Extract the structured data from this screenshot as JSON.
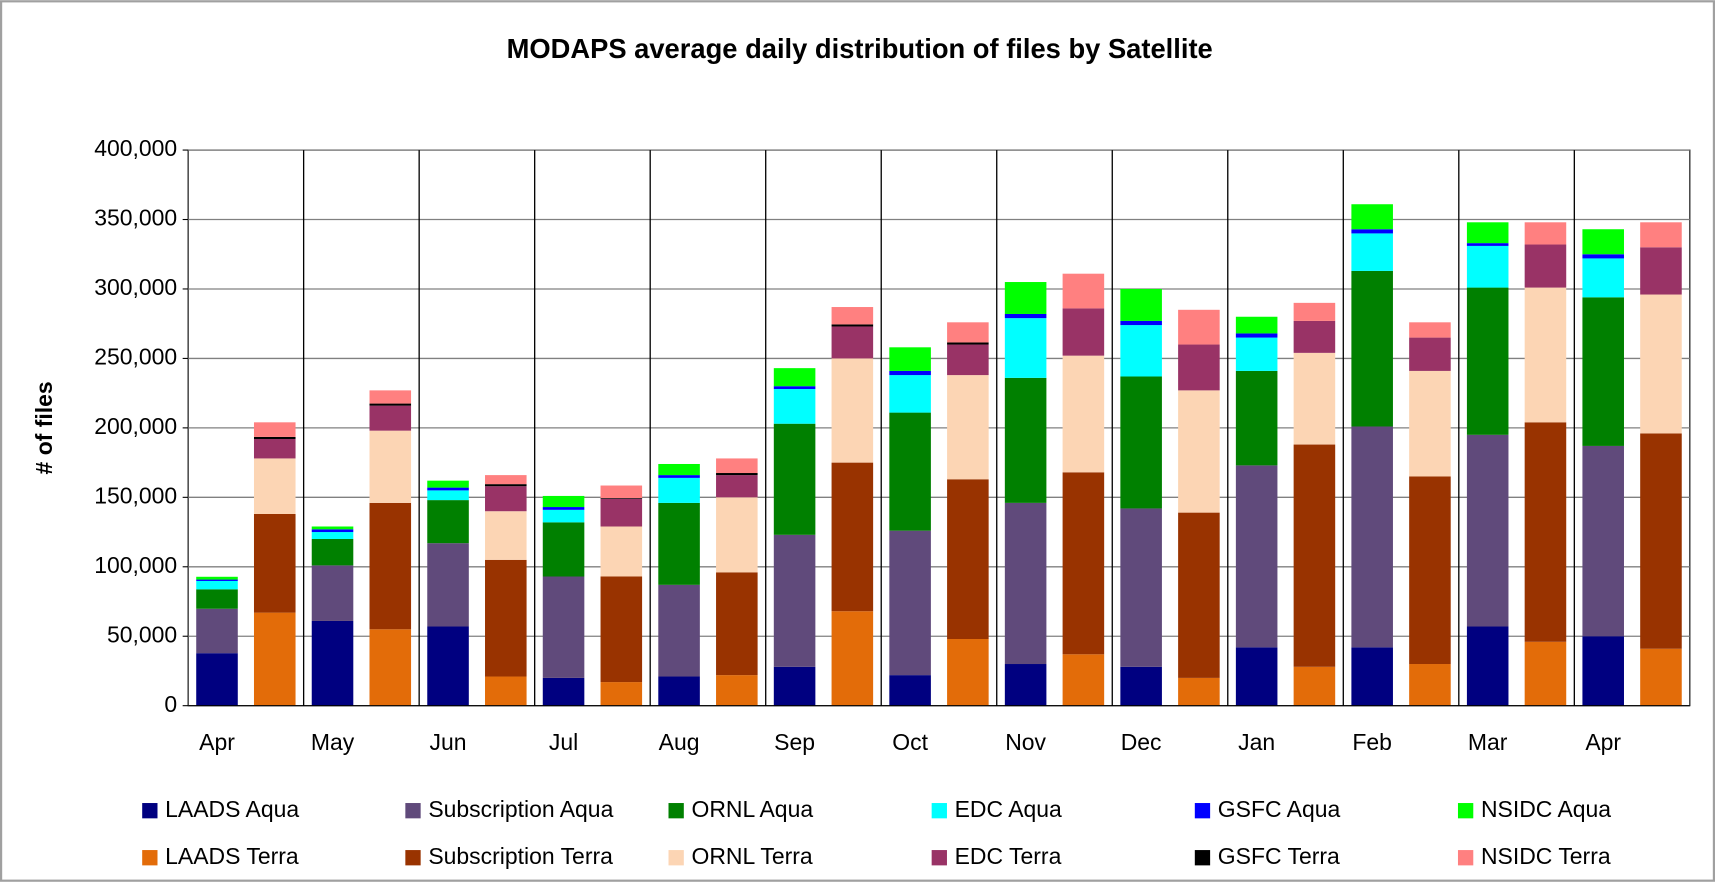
{
  "chart_data": {
    "type": "stacked_bar",
    "title": "MODAPS average daily distribution of files by Satellite",
    "y_label": "# of files",
    "categories": [
      "Apr",
      null,
      "May",
      null,
      "Jun",
      null,
      "Jul",
      null,
      "Aug",
      null,
      "Sep",
      null,
      "Oct",
      null,
      "Nov",
      null,
      "Dec",
      null,
      "Jan",
      null,
      "Feb",
      null,
      "Mar",
      null,
      "Apr",
      null
    ],
    "series": [
      {
        "name": "LAADS Aqua",
        "color": "#000080",
        "values": [
          37800,
          null,
          61000,
          null,
          57000,
          null,
          20000,
          null,
          21000,
          null,
          28000,
          null,
          22000,
          null,
          30000,
          null,
          28000,
          null,
          42000,
          null,
          42000,
          null,
          57000,
          null,
          50000,
          null
        ]
      },
      {
        "name": "Subscription Aqua",
        "color": "#604a7b",
        "values": [
          32000,
          null,
          40000,
          null,
          60000,
          null,
          73000,
          null,
          66000,
          null,
          95000,
          null,
          104000,
          null,
          116000,
          null,
          114000,
          null,
          131000,
          null,
          159000,
          null,
          138000,
          null,
          137000,
          null
        ]
      },
      {
        "name": "ORNL Aqua",
        "color": "#008000",
        "values": [
          14000,
          null,
          19000,
          null,
          31000,
          null,
          39000,
          null,
          59000,
          null,
          80000,
          null,
          85000,
          null,
          90000,
          null,
          95000,
          null,
          68000,
          null,
          112000,
          null,
          106000,
          null,
          107000,
          null
        ]
      },
      {
        "name": "EDC Aqua",
        "color": "#00ffff",
        "values": [
          6000,
          null,
          5000,
          null,
          7000,
          null,
          9000,
          null,
          18000,
          null,
          25000,
          null,
          27000,
          null,
          43000,
          null,
          37000,
          null,
          24000,
          null,
          27000,
          null,
          30000,
          null,
          28000,
          null
        ]
      },
      {
        "name": "GSFC Aqua",
        "color": "#0000ff",
        "values": [
          1000,
          null,
          2000,
          null,
          2000,
          null,
          2000,
          null,
          2000,
          null,
          2000,
          null,
          3000,
          null,
          3000,
          null,
          3000,
          null,
          3000,
          null,
          3000,
          null,
          2000,
          null,
          3000,
          null
        ]
      },
      {
        "name": "NSIDC Aqua",
        "color": "#00ff00",
        "values": [
          2000,
          null,
          2000,
          null,
          5000,
          null,
          8000,
          null,
          8000,
          null,
          13000,
          null,
          17000,
          null,
          23000,
          null,
          23000,
          null,
          12000,
          null,
          18000,
          null,
          15000,
          null,
          18000,
          null
        ]
      },
      {
        "name": "LAADS Terra",
        "color": "#e36c09",
        "values": [
          null,
          67000,
          null,
          55000,
          null,
          21000,
          null,
          17000,
          null,
          22000,
          null,
          68000,
          null,
          48000,
          null,
          37000,
          null,
          20000,
          null,
          28000,
          null,
          30000,
          null,
          46000,
          null,
          41000
        ]
      },
      {
        "name": "Subscription Terra",
        "color": "#993300",
        "values": [
          null,
          71000,
          null,
          91000,
          null,
          84000,
          null,
          76000,
          null,
          74000,
          null,
          107000,
          null,
          115000,
          null,
          131000,
          null,
          119000,
          null,
          160000,
          null,
          135000,
          null,
          158000,
          null,
          155000
        ]
      },
      {
        "name": "ORNL Terra",
        "color": "#fcd5b4",
        "values": [
          null,
          40000,
          null,
          52000,
          null,
          35000,
          null,
          36000,
          null,
          54000,
          null,
          75000,
          null,
          75000,
          null,
          84000,
          null,
          88000,
          null,
          66000,
          null,
          76000,
          null,
          97000,
          null,
          100000
        ]
      },
      {
        "name": "EDC Terra",
        "color": "#993366",
        "values": [
          null,
          14000,
          null,
          18000,
          null,
          18000,
          null,
          20000,
          null,
          16000,
          null,
          23000,
          null,
          22000,
          null,
          34000,
          null,
          33000,
          null,
          23000,
          null,
          24000,
          null,
          31000,
          null,
          34000
        ]
      },
      {
        "name": "GSFC Terra",
        "color": "#000000",
        "values": [
          null,
          1500,
          null,
          1500,
          null,
          1500,
          null,
          500,
          null,
          1500,
          null,
          1500,
          null,
          1500,
          null,
          0,
          null,
          0,
          null,
          0,
          null,
          0,
          null,
          0,
          null,
          0
        ]
      },
      {
        "name": "NSIDC Terra",
        "color": "#ff8080",
        "values": [
          null,
          10500,
          null,
          9500,
          null,
          6500,
          null,
          9000,
          null,
          10500,
          null,
          12500,
          null,
          14500,
          null,
          25000,
          null,
          25000,
          null,
          13000,
          null,
          11000,
          null,
          16000,
          null,
          18000
        ]
      }
    ],
    "ylim": [
      0,
      400000
    ],
    "yticks": [
      0,
      {
        "value": 50000,
        "label": "50,000"
      },
      {
        "value": 100000,
        "label": "100,000"
      },
      {
        "value": 150000,
        "label": "150,000"
      },
      {
        "value": 200000,
        "label": "200,000"
      },
      {
        "value": 250000,
        "label": "250,000"
      },
      {
        "value": 300000,
        "label": "300,000"
      },
      {
        "value": 350000,
        "label": "350,000"
      },
      {
        "value": 400000,
        "label": "400,000"
      }
    ],
    "grid": true
  }
}
